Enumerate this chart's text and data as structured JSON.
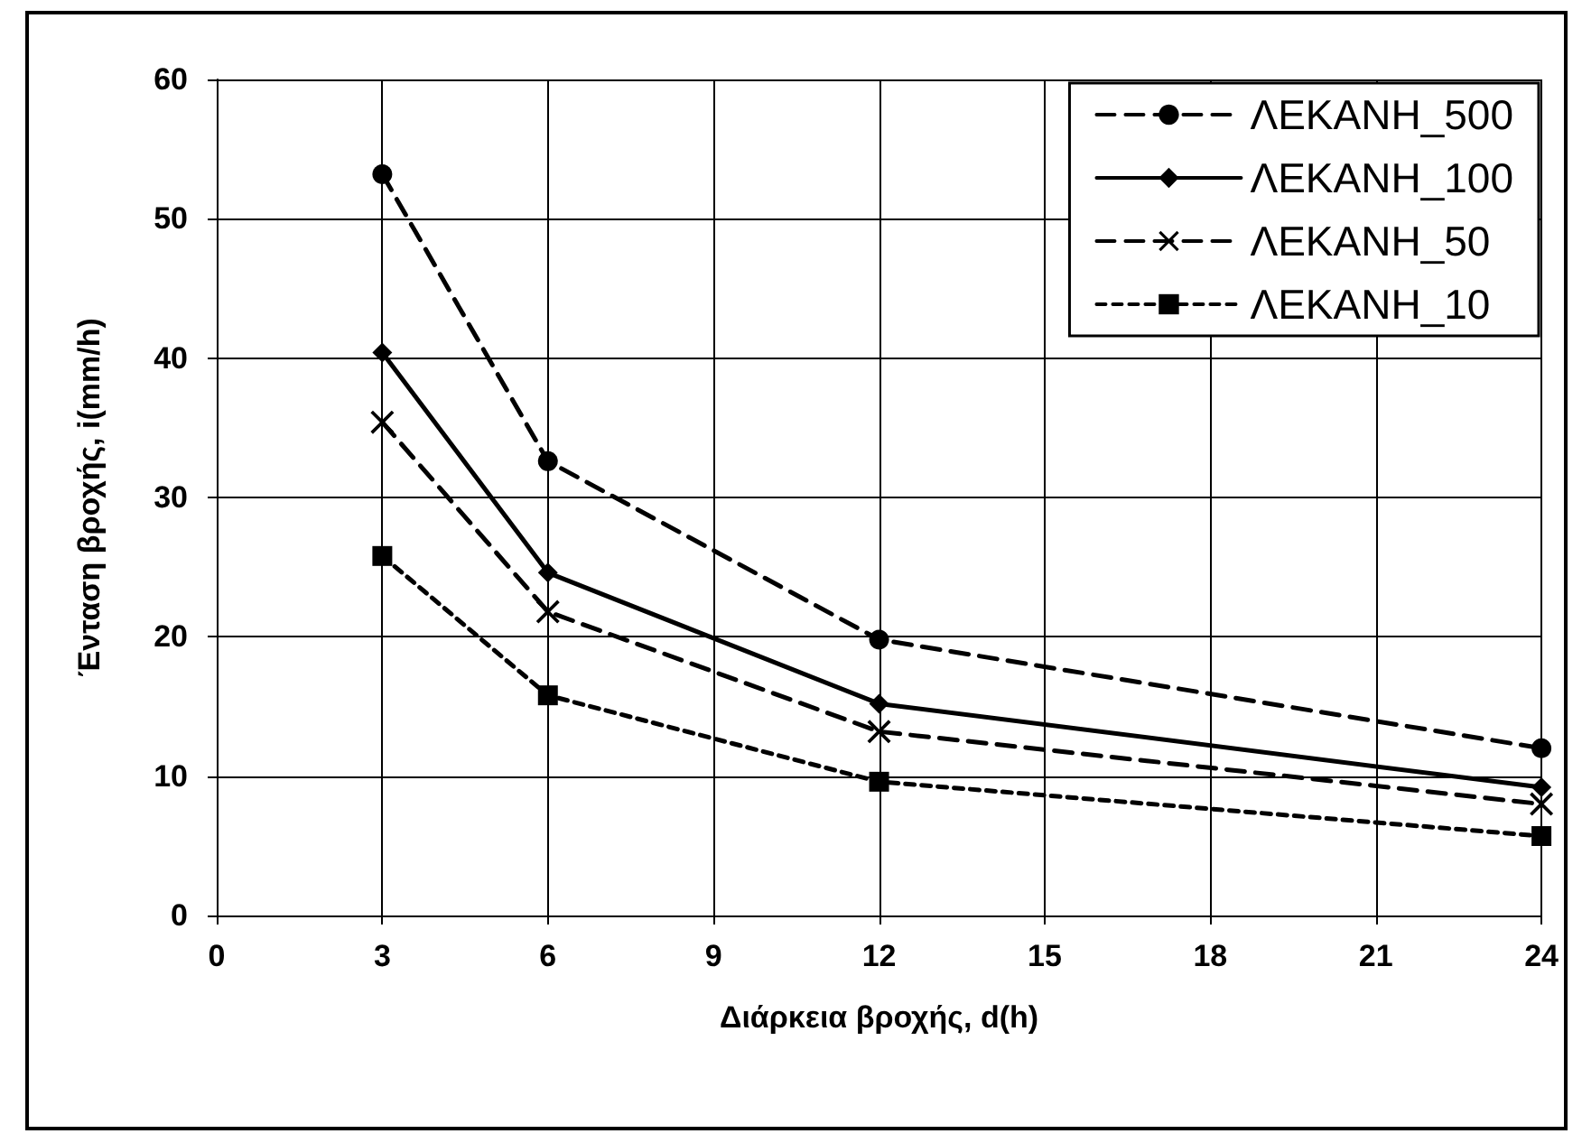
{
  "chart_data": {
    "type": "line",
    "xlabel": "Διάρκεια βροχής, d(h)",
    "ylabel": "Ένταση βροχής, i(mm/h)",
    "x": [
      3,
      6,
      12,
      24
    ],
    "series": [
      {
        "name": "ΛΕΚΑΝΗ_500",
        "color": "#000000",
        "values": [
          53.2,
          32.6,
          19.8,
          12.0
        ],
        "marker": "circle",
        "line_style": "dashed"
      },
      {
        "name": "ΛΕΚΑΝΗ_100",
        "color": "#000000",
        "values": [
          40.4,
          24.6,
          15.2,
          9.2
        ],
        "marker": "diamond",
        "line_style": "solid"
      },
      {
        "name": "ΛΕΚΑΝΗ_50",
        "color": "#000000",
        "values": [
          35.4,
          21.8,
          13.2,
          8.0
        ],
        "marker": "cross",
        "line_style": "dashed"
      },
      {
        "name": "ΛΕΚΑΝΗ_10",
        "color": "#000000",
        "values": [
          25.8,
          15.8,
          9.6,
          5.7
        ],
        "marker": "square",
        "line_style": "dotted"
      }
    ],
    "xlim": [
      0,
      24
    ],
    "xticks": [
      0,
      3,
      6,
      9,
      12,
      15,
      18,
      21,
      24
    ],
    "ylim": [
      0,
      60
    ],
    "yticks": [
      0,
      10,
      20,
      30,
      40,
      50,
      60
    ],
    "grid": true,
    "legend": "top right"
  }
}
